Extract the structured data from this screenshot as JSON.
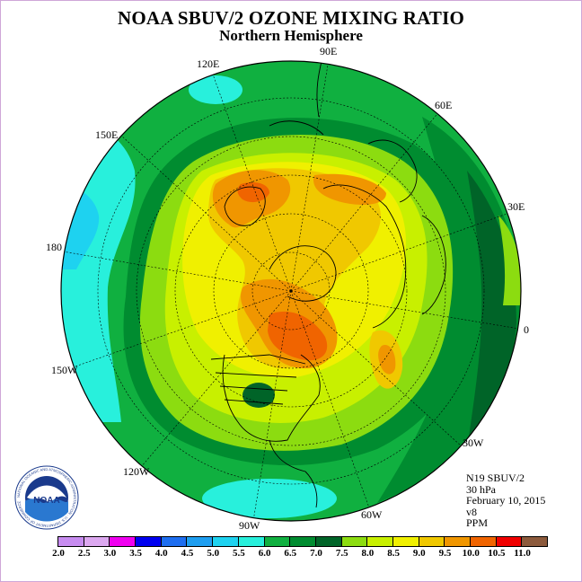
{
  "header": {
    "title": "NOAA SBUV/2 OZONE MIXING RATIO",
    "subtitle": "Northern Hemisphere"
  },
  "longitude_labels": [
    "90E",
    "60E",
    "30E",
    "0",
    "30W",
    "60W",
    "90W",
    "120W",
    "150W",
    "180",
    "150E",
    "120E"
  ],
  "info": {
    "instrument": "N19 SBUV/2",
    "level": "30 hPa",
    "date": "February 10, 2015",
    "version": "v8",
    "units": "PPM"
  },
  "logo": {
    "text": "NOAA",
    "ring_text": "NATIONAL OCEANIC AND ATMOSPHERIC ADMINISTRATION · U.S. DEPARTMENT OF COMMERCE"
  },
  "colorbar": {
    "ticks": [
      "2.0",
      "2.5",
      "3.0",
      "3.5",
      "4.0",
      "4.5",
      "5.0",
      "5.5",
      "6.0",
      "6.5",
      "7.0",
      "7.5",
      "8.0",
      "8.5",
      "9.0",
      "9.5",
      "10.0",
      "10.5",
      "11.0"
    ],
    "colors": [
      "#c78cf0",
      "#dca8f0",
      "#f000f0",
      "#0000f0",
      "#1e6ef0",
      "#1e9ef0",
      "#1ed2f0",
      "#28f0dc",
      "#10b040",
      "#008c30",
      "#006428",
      "#8cdc10",
      "#c8f000",
      "#f0f000",
      "#f0c800",
      "#f09600",
      "#f06400",
      "#f00000",
      "#8c5a3c"
    ]
  },
  "colors": {
    "background": "#ffffff",
    "frame": "#cfa6d8"
  }
}
